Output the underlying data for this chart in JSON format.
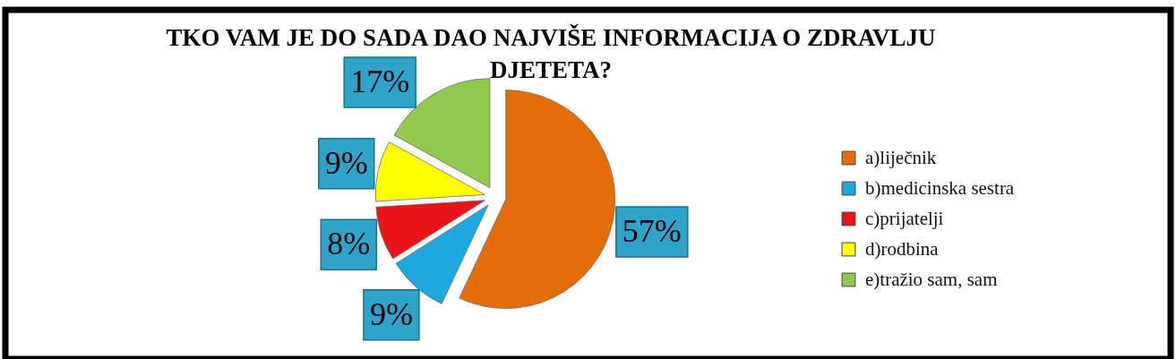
{
  "chart_data": {
    "type": "pie",
    "title": "TKO VAM JE DO SADA DAO NAJVIŠE INFORMACIJA O ZDRAVLJU DJETETA?",
    "categories": [
      "a)liječnik",
      "b)medicinska sestra",
      "c)prijatelji",
      "d)rodbina",
      "e)tražio sam,  sam"
    ],
    "values": [
      57,
      9,
      8,
      9,
      17
    ],
    "colors": [
      "#e46c0a",
      "#1fa8e0",
      "#e8141a",
      "#ffff00",
      "#92c84f"
    ],
    "value_labels": [
      "57%",
      "9%",
      "8%",
      "9%",
      "17%"
    ],
    "legend": "right"
  }
}
